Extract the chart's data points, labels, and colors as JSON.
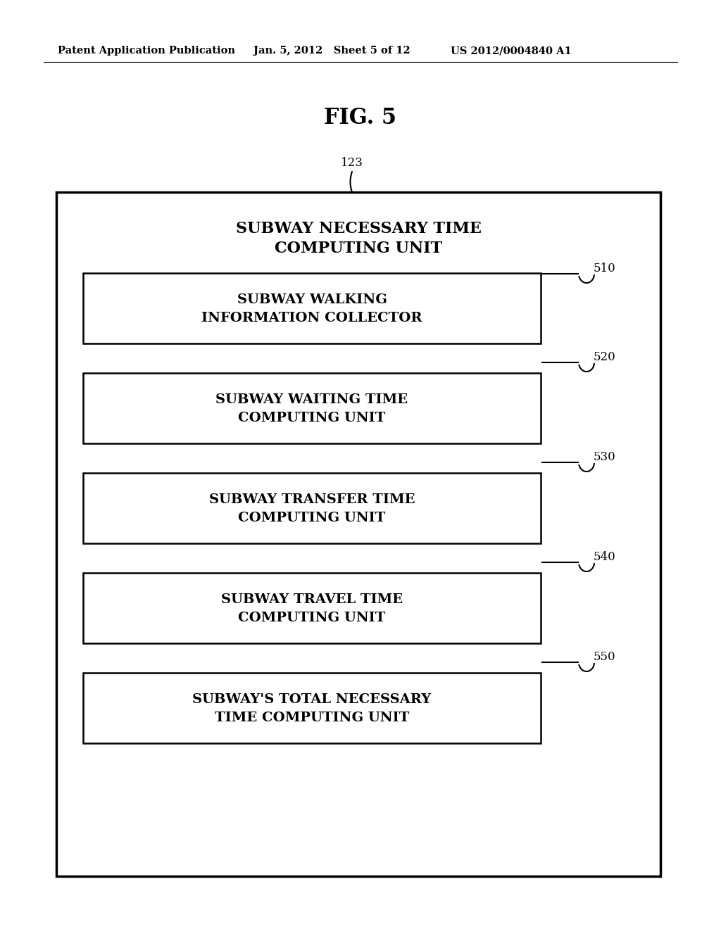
{
  "background_color": "#ffffff",
  "header_left": "Patent Application Publication",
  "header_mid": "Jan. 5, 2012   Sheet 5 of 12",
  "header_right": "US 2012/0004840 A1",
  "fig_title": "FIG. 5",
  "outer_box_label_line1": "SUBWAY NECESSARY TIME",
  "outer_box_label_line2": "COMPUTING UNIT",
  "outer_ref": "123",
  "boxes": [
    {
      "line1": "SUBWAY WALKING",
      "line2": "INFORMATION COLLECTOR",
      "ref": "510"
    },
    {
      "line1": "SUBWAY WAITING TIME",
      "line2": "COMPUTING UNIT",
      "ref": "520"
    },
    {
      "line1": "SUBWAY TRANSFER TIME",
      "line2": "COMPUTING UNIT",
      "ref": "530"
    },
    {
      "line1": "SUBWAY TRAVEL TIME",
      "line2": "COMPUTING UNIT",
      "ref": "540"
    },
    {
      "line1": "SUBWAY'S TOTAL NECESSARY",
      "line2": "TIME COMPUTING UNIT",
      "ref": "550"
    }
  ]
}
